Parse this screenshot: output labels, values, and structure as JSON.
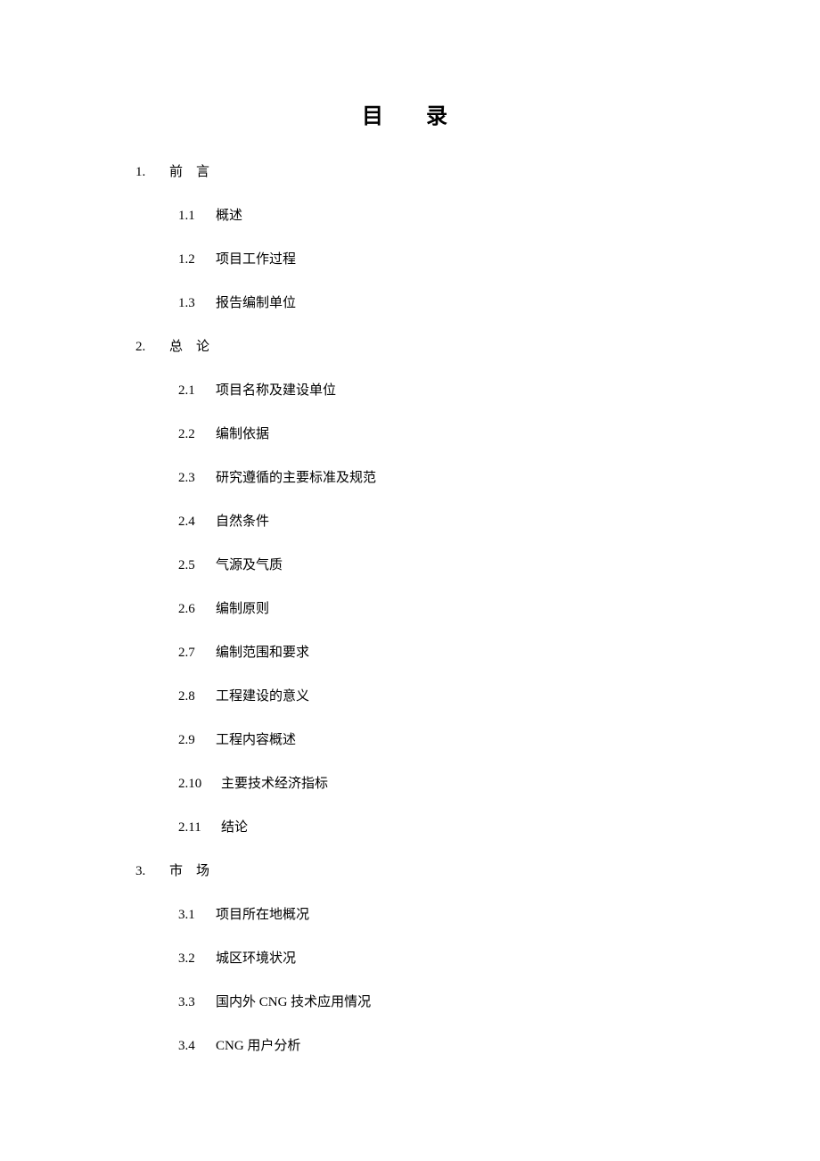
{
  "title": "目　录",
  "background_color": "#ffffff",
  "text_color": "#000000",
  "title_fontsize": 24,
  "body_fontsize": 15,
  "font_family": "SimSun",
  "sections": [
    {
      "num": "1.",
      "label": "前　言",
      "spaced": true,
      "items": [
        {
          "num": "1.1",
          "label": "概述"
        },
        {
          "num": "1.2",
          "label": "项目工作过程"
        },
        {
          "num": "1.3",
          "label": "报告编制单位"
        }
      ]
    },
    {
      "num": "2.",
      "label": "总　论",
      "spaced": true,
      "items": [
        {
          "num": "2.1",
          "label": "项目名称及建设单位"
        },
        {
          "num": "2.2",
          "label": "编制依据"
        },
        {
          "num": "2.3",
          "label": "研究遵循的主要标准及规范"
        },
        {
          "num": "2.4",
          "label": "自然条件"
        },
        {
          "num": "2.5",
          "label": "气源及气质"
        },
        {
          "num": "2.6",
          "label": "编制原则"
        },
        {
          "num": "2.7",
          "label": "编制范围和要求"
        },
        {
          "num": "2.8",
          "label": "工程建设的意义"
        },
        {
          "num": "2.9",
          "label": "工程内容概述"
        },
        {
          "num": "2.10",
          "label": "主要技术经济指标",
          "wide": true
        },
        {
          "num": "2.11",
          "label": "结论",
          "wide": true
        }
      ]
    },
    {
      "num": "3.",
      "label": "市　场",
      "spaced": true,
      "items": [
        {
          "num": "3.1",
          "label": "项目所在地概况"
        },
        {
          "num": "3.2",
          "label": "城区环境状况"
        },
        {
          "num": "3.3",
          "label": "国内外 CNG 技术应用情况"
        },
        {
          "num": "3.4",
          "label": "CNG 用户分析"
        }
      ]
    }
  ]
}
